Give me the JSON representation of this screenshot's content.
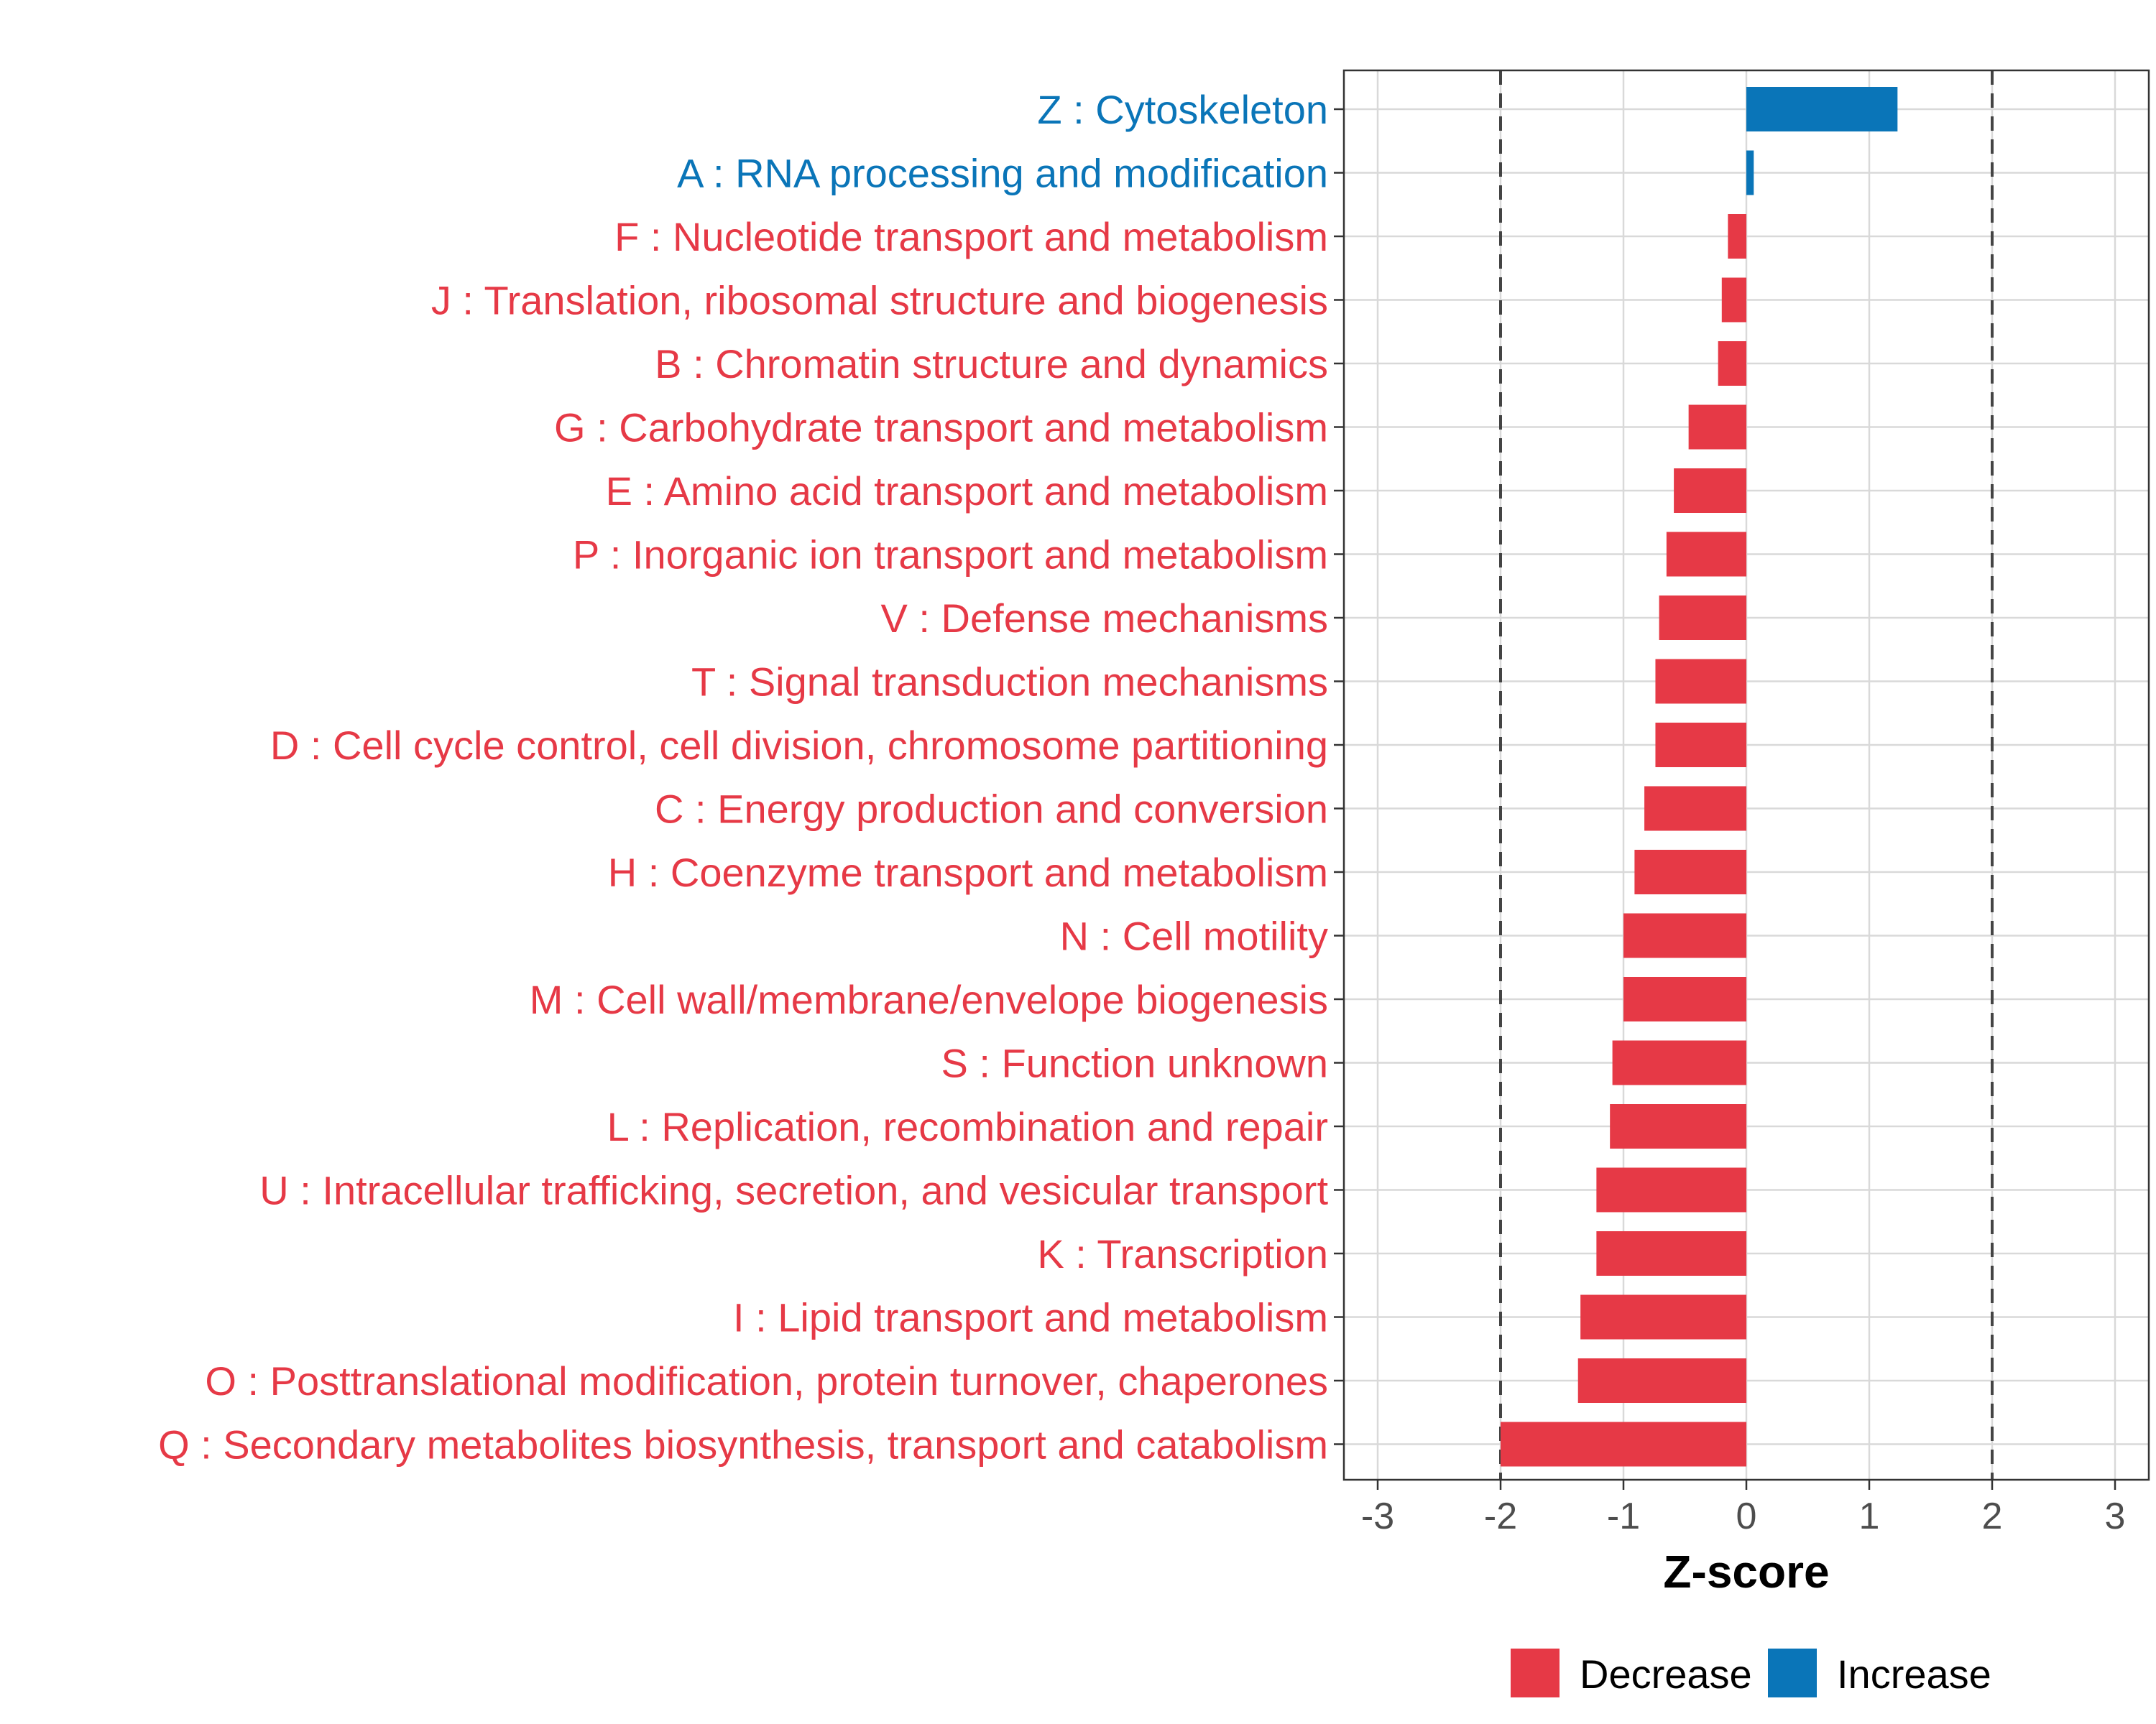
{
  "chart_data": {
    "type": "bar",
    "orientation": "horizontal",
    "xlabel": "Z-score",
    "ylabel": "",
    "xlim": [
      -3.3,
      3.3
    ],
    "x_ticks": [
      -3,
      -2,
      -1,
      0,
      1,
      2,
      3
    ],
    "x_tick_labels": [
      "-3",
      "-2",
      "-1",
      "0",
      "1",
      "2",
      "3"
    ],
    "reference_lines": [
      -2,
      2
    ],
    "grid": true,
    "legend": {
      "position": "bottom",
      "entries": [
        {
          "label": "Decrease",
          "color": "#e63946"
        },
        {
          "label": "Increase",
          "color": "#0a75b8"
        }
      ]
    },
    "categories": [
      "Z : Cytoskeleton",
      "A : RNA processing and modification",
      "F : Nucleotide transport and metabolism",
      "J : Translation, ribosomal structure and biogenesis",
      "B : Chromatin structure and dynamics",
      "G : Carbohydrate transport and metabolism",
      "E : Amino acid transport and metabolism",
      "P : Inorganic ion transport and metabolism",
      "V : Defense mechanisms",
      "T : Signal transduction mechanisms",
      "D : Cell cycle control, cell division, chromosome partitioning",
      "C : Energy production and conversion",
      "H : Coenzyme transport and metabolism",
      "N : Cell motility",
      "M : Cell wall/membrane/envelope biogenesis",
      "S : Function unknown",
      "L : Replication, recombination and repair",
      "U : Intracellular trafficking, secretion, and vesicular transport",
      "K : Transcription",
      "I : Lipid transport and metabolism",
      "O : Posttranslational modification, protein turnover, chaperones",
      "Q : Secondary metabolites biosynthesis, transport and catabolism"
    ],
    "values": [
      1.23,
      0.06,
      -0.15,
      -0.2,
      -0.23,
      -0.47,
      -0.59,
      -0.65,
      -0.71,
      -0.74,
      -0.74,
      -0.83,
      -0.91,
      -1.0,
      -1.0,
      -1.09,
      -1.11,
      -1.22,
      -1.22,
      -1.35,
      -1.37,
      -2.0
    ],
    "direction": [
      "Increase",
      "Increase",
      "Decrease",
      "Decrease",
      "Decrease",
      "Decrease",
      "Decrease",
      "Decrease",
      "Decrease",
      "Decrease",
      "Decrease",
      "Decrease",
      "Decrease",
      "Decrease",
      "Decrease",
      "Decrease",
      "Decrease",
      "Decrease",
      "Decrease",
      "Decrease",
      "Decrease",
      "Decrease"
    ]
  }
}
